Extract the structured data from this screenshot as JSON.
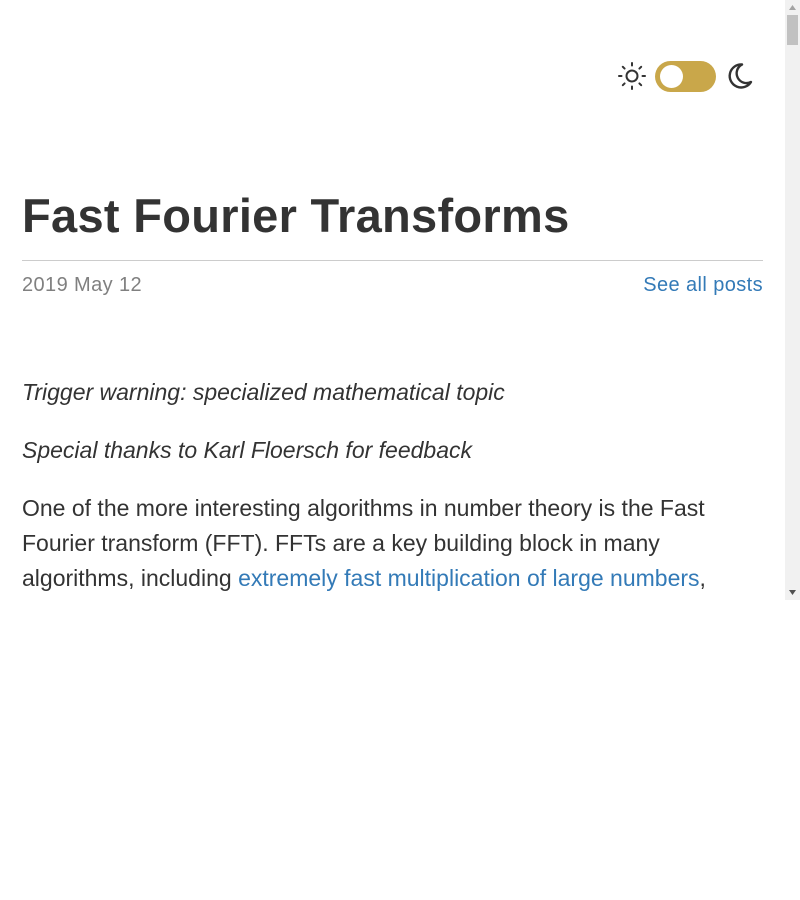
{
  "theme_toggle": {
    "light_icon": "sun-icon",
    "dark_icon": "moon-icon",
    "accent": "#c9a74a",
    "state": "light"
  },
  "post": {
    "title": "Fast Fourier Transforms",
    "date": "2019 May 12",
    "all_posts_link": "See all posts",
    "trigger_warning": "Trigger warning: specialized mathematical topic",
    "thanks": "Special thanks to Karl Floersch for feedback",
    "intro_text": "One of the more interesting algorithms in number theory is the Fast Fourier transform (FFT). FFTs are a key building block in many algorithms, including ",
    "intro_link": "extremely fast multiplication of large numbers",
    "intro_trailing": ","
  },
  "colors": {
    "text": "#333333",
    "muted": "#808080",
    "link": "#337ab7"
  }
}
